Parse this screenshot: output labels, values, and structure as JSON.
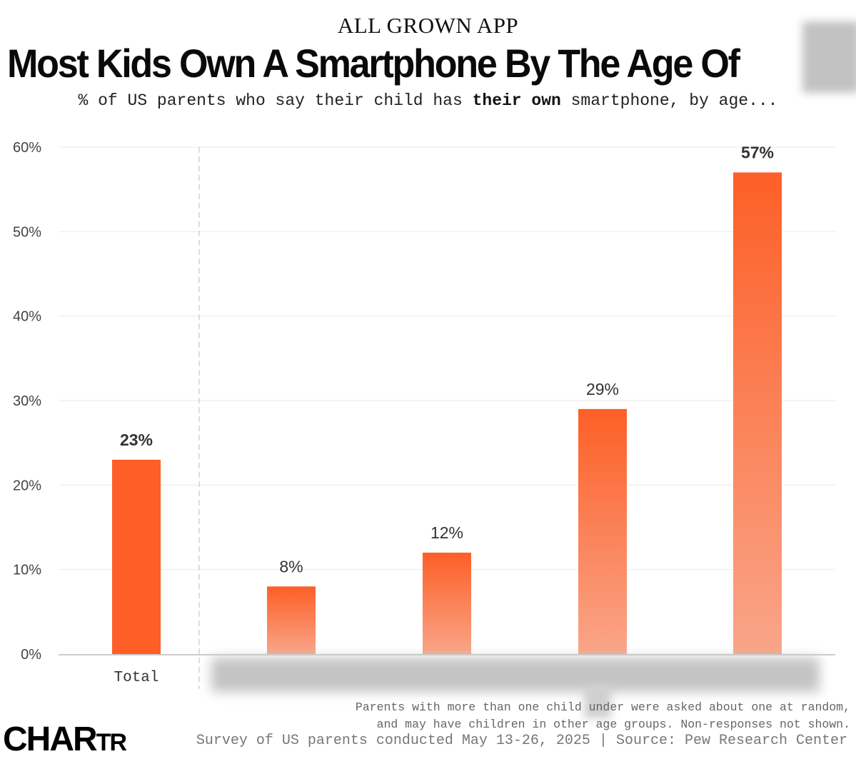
{
  "header": {
    "kicker": "ALL GROWN APP",
    "title": "Most Kids Own A Smartphone By The Age Of",
    "subtitle_pre": "% of US parents who say their child has ",
    "subtitle_bold": "their own",
    "subtitle_post": " smartphone, by age..."
  },
  "footer": {
    "note_line1": "Parents with more than one child under    were asked about one at random,",
    "note_line2": "and may have children in other age groups. Non-responses not shown.",
    "source": "Survey of US parents conducted May 13-26, 2025 | Source: Pew Research Center",
    "logo_big": "CHA",
    "logo_mid": "R",
    "logo_small": "TR"
  },
  "colors": {
    "bar_top": "#fd5f27",
    "bar_bottom": "#f9a589",
    "total_bar": "#fd5f27",
    "gridline": "#f0f0f0",
    "axis": "#cccccc",
    "divider": "#c8c8c8",
    "text": "#333333"
  },
  "chart_data": {
    "type": "bar",
    "title": "Most Kids Own A Smartphone By The Age Of",
    "subtitle": "% of US parents who say their child has their own smartphone, by age...",
    "xlabel": "",
    "ylabel": "",
    "ylim": [
      0,
      60
    ],
    "yticks": [
      0,
      10,
      20,
      30,
      40,
      50,
      60
    ],
    "ytick_labels": [
      "0%",
      "10%",
      "20%",
      "30%",
      "40%",
      "50%",
      "60%"
    ],
    "grid": true,
    "categories": [
      "Total",
      "",
      "",
      "",
      ""
    ],
    "category_labels_obscured": true,
    "values": [
      23,
      8,
      12,
      29,
      57
    ],
    "value_labels": [
      "23%",
      "8%",
      "12%",
      "29%",
      "57%"
    ],
    "bold_labels": [
      true,
      false,
      false,
      false,
      true
    ]
  }
}
